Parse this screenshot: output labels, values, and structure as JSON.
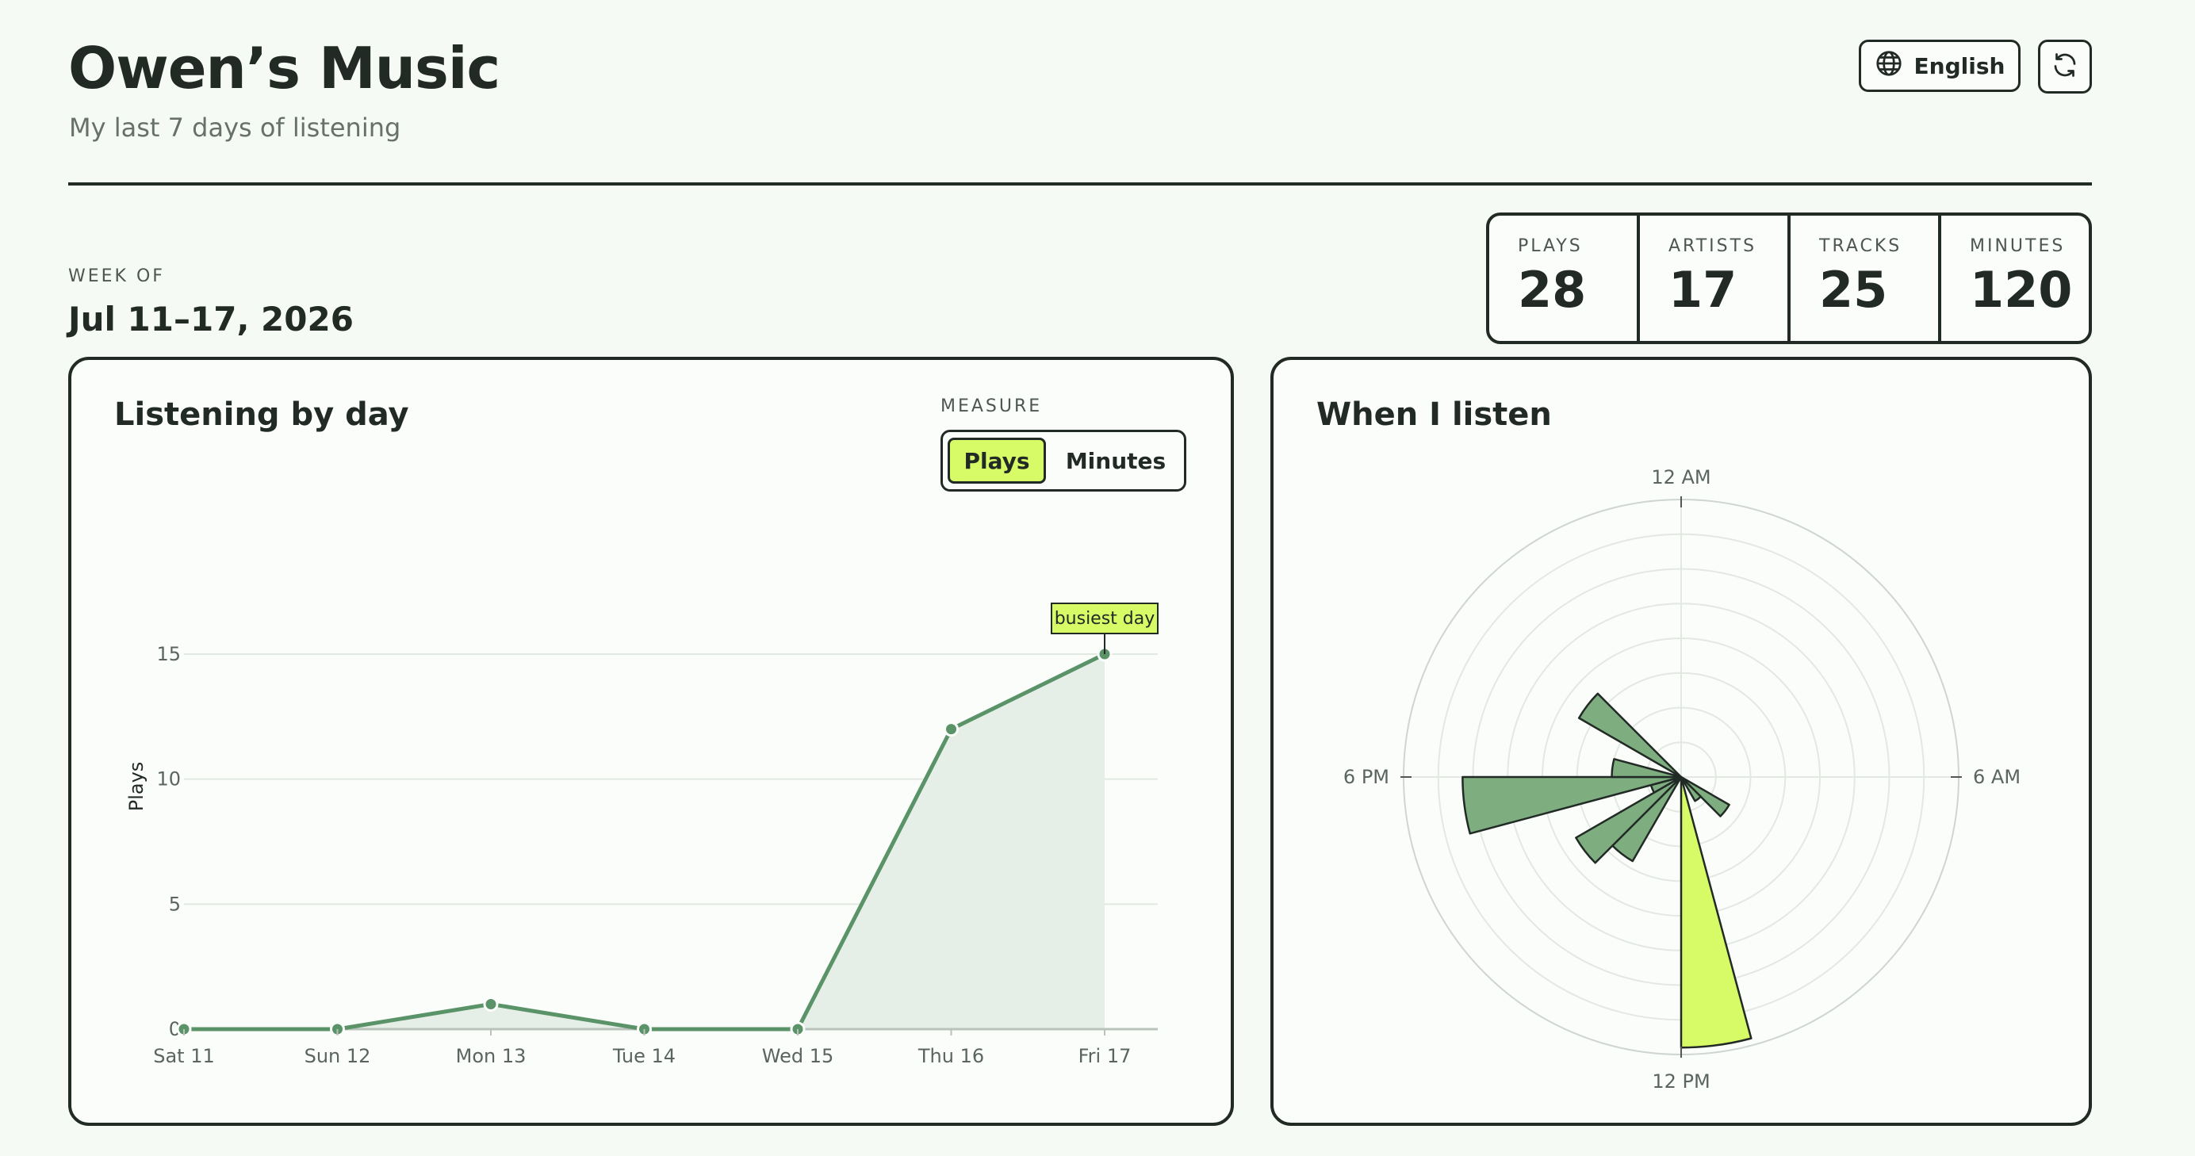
{
  "header": {
    "title": "Owen’s Music",
    "subtitle": "My last 7 days of listening",
    "language_label": "English"
  },
  "icons": {
    "language": "globe-icon",
    "refresh": "refresh-icon"
  },
  "week": {
    "label": "WEEK OF",
    "value": "Jul 11–17, 2026"
  },
  "stats": [
    {
      "label": "PLAYS",
      "value": "28"
    },
    {
      "label": "ARTISTS",
      "value": "17"
    },
    {
      "label": "TRACKS",
      "value": "25"
    },
    {
      "label": "MINUTES",
      "value": "120"
    }
  ],
  "by_day": {
    "title": "Listening by day",
    "measure_label": "MEASURE",
    "options": [
      "Plays",
      "Minutes"
    ],
    "selected": "Plays"
  },
  "when": {
    "title": "When I listen"
  },
  "colors": {
    "accent": "#d7fb67",
    "series": "#5b9369",
    "fill": "#e6efe7",
    "ink": "#222a25"
  },
  "chart_data": [
    {
      "type": "area",
      "categories": [
        "Sat 11",
        "Sun 12",
        "Mon 13",
        "Tue 14",
        "Wed 15",
        "Thu 16",
        "Fri 17"
      ],
      "values": [
        0,
        0,
        1,
        0,
        0,
        12,
        15
      ],
      "ylabel": "Plays",
      "yticks": [
        0,
        5,
        10,
        15
      ],
      "ylim": [
        0,
        15
      ],
      "grid": true,
      "annotation": {
        "category": "Fri 17",
        "text": "busiest day"
      }
    },
    {
      "type": "polar-bar",
      "angle_labels": [
        "12 AM",
        "6 AM",
        "12 PM",
        "6 PM"
      ],
      "bins": [
        {
          "hour": 8,
          "value": 1.6,
          "highlight": false
        },
        {
          "hour": 9,
          "value": 0.8,
          "highlight": false
        },
        {
          "hour": 11,
          "value": 7.8,
          "highlight": true
        },
        {
          "hour": 14,
          "value": 2.8,
          "highlight": false
        },
        {
          "hour": 15,
          "value": 3.5,
          "highlight": false
        },
        {
          "hour": 16,
          "value": 0.9,
          "highlight": false
        },
        {
          "hour": 17,
          "value": 6.3,
          "highlight": false
        },
        {
          "hour": 18,
          "value": 2.0,
          "highlight": false
        },
        {
          "hour": 20,
          "value": 3.4,
          "highlight": false
        }
      ],
      "rmax": 8,
      "grid": true
    }
  ]
}
